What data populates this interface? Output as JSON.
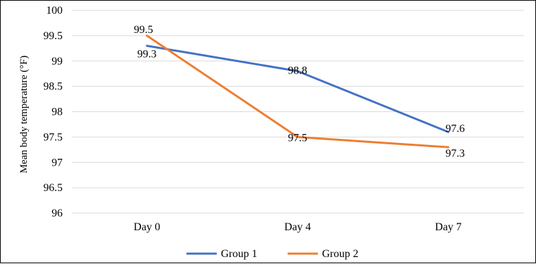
{
  "chart_data": {
    "type": "line",
    "title": "",
    "xlabel": "",
    "ylabel": "Mean body temperature (°F)",
    "categories": [
      "Day 0",
      "Day 4",
      "Day 7"
    ],
    "ylim": [
      96,
      100
    ],
    "yticks": [
      "96",
      "96.5",
      "97",
      "97.5",
      "98",
      "98.5",
      "99",
      "99.5",
      "100"
    ],
    "grid": true,
    "legend_position": "bottom",
    "series": [
      {
        "name": "Group 1",
        "color": "#4472c4",
        "values": [
          99.3,
          98.8,
          97.6
        ],
        "labels": [
          "99.3",
          "98.8",
          "97.6"
        ]
      },
      {
        "name": "Group 2",
        "color": "#ed7d31",
        "values": [
          99.5,
          97.5,
          97.3
        ],
        "labels": [
          "99.5",
          "97.5",
          "97.3"
        ]
      }
    ]
  }
}
